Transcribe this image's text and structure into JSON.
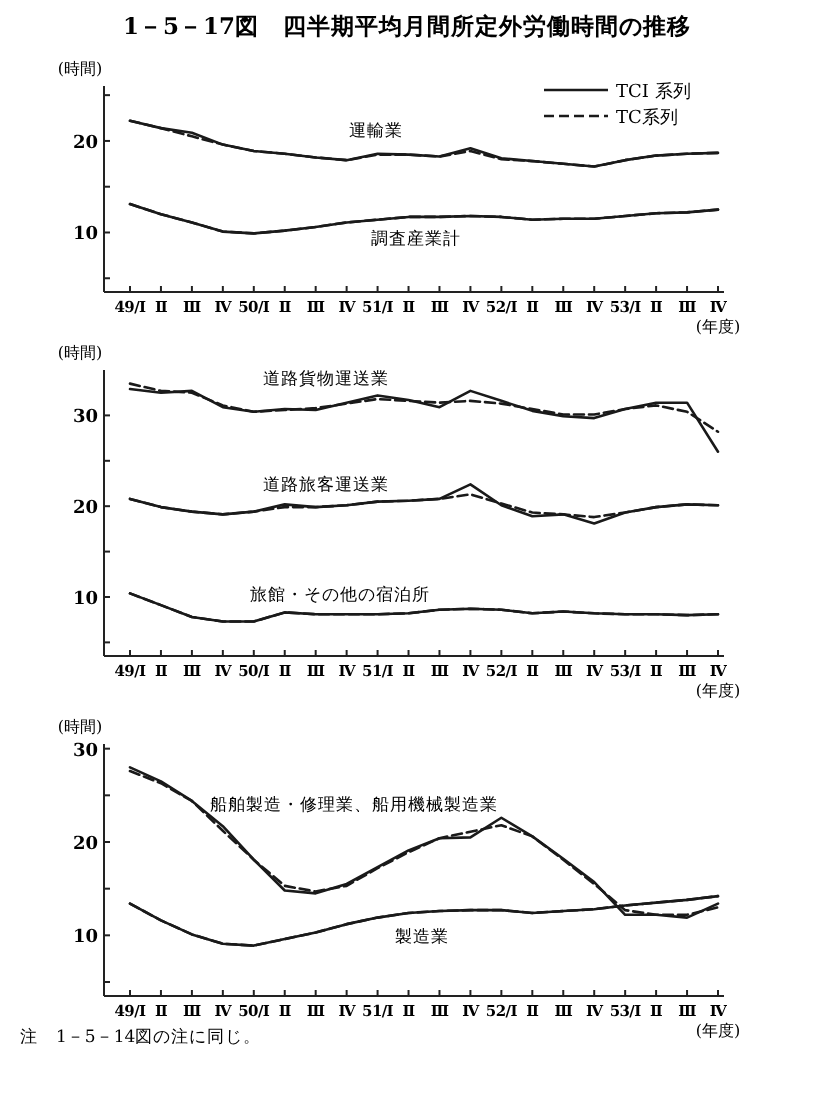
{
  "chart_data": [
    {
      "type": "line",
      "title": "1－5－17図　四半期平均月間所定外労働時間の推移",
      "xlabel": "(年度)",
      "ylabel": "(時間)",
      "categories": [
        "49/Ⅰ",
        "Ⅱ",
        "Ⅲ",
        "Ⅳ",
        "50/Ⅰ",
        "Ⅱ",
        "Ⅲ",
        "Ⅳ",
        "51/Ⅰ",
        "Ⅱ",
        "Ⅲ",
        "Ⅳ",
        "52/Ⅰ",
        "Ⅱ",
        "Ⅲ",
        "Ⅳ",
        "53/Ⅰ",
        "Ⅱ",
        "Ⅲ",
        "Ⅳ"
      ],
      "ylim": [
        3.5,
        26
      ],
      "yticks": [
        {
          "value": 5,
          "label": null
        },
        10,
        {
          "value": 15,
          "label": null
        },
        20,
        {
          "value": 25,
          "label": null
        }
      ],
      "legend": "top right",
      "series": [
        {
          "name": "TCI 系列",
          "color": "#1a1a1a",
          "line_style": "solid",
          "values": [
            22.2,
            21.4,
            20.9,
            19.6,
            18.9,
            18.6,
            18.2,
            17.9,
            18.6,
            18.5,
            18.3,
            19.2,
            18.1,
            17.8,
            17.5,
            17.2,
            17.9,
            18.4,
            18.6,
            18.7
          ]
        },
        {
          "name": "TC系列",
          "color": "#1a1a1a",
          "line_style": "dashed",
          "values": [
            22.2,
            21.4,
            20.5,
            19.6,
            18.9,
            18.6,
            18.2,
            17.9,
            18.5,
            18.5,
            18.3,
            18.9,
            18.0,
            17.8,
            17.5,
            17.2,
            17.9,
            18.4,
            18.6,
            18.7
          ]
        },
        {
          "color": "#1a1a1a",
          "line_style": "solid",
          "values": [
            13.1,
            12.0,
            11.1,
            10.1,
            9.9,
            10.2,
            10.6,
            11.1,
            11.4,
            11.7,
            11.7,
            11.8,
            11.7,
            11.4,
            11.5,
            11.5,
            11.8,
            12.1,
            12.2,
            12.5
          ]
        },
        {
          "color": "#1a1a1a",
          "line_style": "dashed",
          "values": [
            13.1,
            12.0,
            11.1,
            10.1,
            9.9,
            10.2,
            10.6,
            11.1,
            11.4,
            11.7,
            11.7,
            11.8,
            11.7,
            11.4,
            11.5,
            11.5,
            11.8,
            12.1,
            12.2,
            12.5
          ]
        }
      ],
      "annotations": [
        "運輸業",
        "調査産業計"
      ]
    },
    {
      "type": "line",
      "xlabel": "(年度)",
      "ylabel": "(時間)",
      "categories": [
        "49/Ⅰ",
        "Ⅱ",
        "Ⅲ",
        "Ⅳ",
        "50/Ⅰ",
        "Ⅱ",
        "Ⅲ",
        "Ⅳ",
        "51/Ⅰ",
        "Ⅱ",
        "Ⅲ",
        "Ⅳ",
        "52/Ⅰ",
        "Ⅱ",
        "Ⅲ",
        "Ⅳ",
        "53/Ⅰ",
        "Ⅱ",
        "Ⅲ",
        "Ⅳ"
      ],
      "ylim": [
        3.5,
        35
      ],
      "yticks": [
        {
          "value": 5,
          "label": null
        },
        10,
        {
          "value": 15,
          "label": null
        },
        20,
        {
          "value": 25,
          "label": null
        },
        30
      ],
      "series": [
        {
          "color": "#1a1a1a",
          "line_style": "solid",
          "values": [
            32.9,
            32.5,
            32.7,
            30.9,
            30.4,
            30.7,
            30.6,
            31.4,
            32.2,
            31.7,
            30.9,
            32.7,
            31.6,
            30.5,
            29.9,
            29.7,
            30.7,
            31.4,
            31.4,
            26.0
          ]
        },
        {
          "color": "#1a1a1a",
          "line_style": "dashed",
          "values": [
            33.5,
            32.7,
            32.5,
            31.1,
            30.4,
            30.6,
            30.8,
            31.3,
            31.8,
            31.6,
            31.4,
            31.6,
            31.3,
            30.7,
            30.1,
            30.1,
            30.7,
            31.1,
            30.4,
            28.2
          ]
        },
        {
          "color": "#1a1a1a",
          "line_style": "solid",
          "values": [
            20.8,
            19.9,
            19.4,
            19.1,
            19.4,
            20.2,
            19.9,
            20.1,
            20.5,
            20.6,
            20.8,
            22.4,
            20.1,
            18.9,
            19.1,
            18.1,
            19.3,
            19.9,
            20.2,
            20.1
          ]
        },
        {
          "color": "#1a1a1a",
          "line_style": "dashed",
          "values": [
            20.8,
            19.9,
            19.4,
            19.1,
            19.4,
            19.9,
            19.9,
            20.1,
            20.5,
            20.6,
            20.8,
            21.3,
            20.3,
            19.3,
            19.1,
            18.8,
            19.3,
            19.9,
            20.2,
            20.1
          ]
        },
        {
          "color": "#1a1a1a",
          "line_style": "solid",
          "values": [
            10.4,
            9.1,
            7.8,
            7.3,
            7.3,
            8.3,
            8.1,
            8.1,
            8.1,
            8.2,
            8.6,
            8.7,
            8.6,
            8.2,
            8.4,
            8.2,
            8.1,
            8.1,
            8.0,
            8.1
          ]
        },
        {
          "color": "#1a1a1a",
          "line_style": "dashed",
          "values": [
            10.4,
            9.1,
            7.8,
            7.3,
            7.3,
            8.3,
            8.1,
            8.1,
            8.1,
            8.2,
            8.6,
            8.7,
            8.6,
            8.2,
            8.4,
            8.2,
            8.1,
            8.1,
            8.0,
            8.1
          ]
        }
      ],
      "annotations": [
        "道路貨物運送業",
        "道路旅客運送業",
        "旅館・その他の宿泊所"
      ]
    },
    {
      "type": "line",
      "xlabel": "(年度)",
      "ylabel": "(時間)",
      "categories": [
        "49/Ⅰ",
        "Ⅱ",
        "Ⅲ",
        "Ⅳ",
        "50/Ⅰ",
        "Ⅱ",
        "Ⅲ",
        "Ⅳ",
        "51/Ⅰ",
        "Ⅱ",
        "Ⅲ",
        "Ⅳ",
        "52/Ⅰ",
        "Ⅱ",
        "Ⅲ",
        "Ⅳ",
        "53/Ⅰ",
        "Ⅱ",
        "Ⅲ",
        "Ⅳ"
      ],
      "ylim": [
        3.5,
        30.5
      ],
      "yticks": [
        {
          "value": 5,
          "label": null
        },
        10,
        {
          "value": 15,
          "label": null
        },
        20,
        {
          "value": 25,
          "label": null
        },
        30
      ],
      "series": [
        {
          "color": "#1a1a1a",
          "line_style": "solid",
          "values": [
            28.0,
            26.5,
            24.4,
            21.7,
            18.1,
            14.8,
            14.5,
            15.5,
            17.3,
            19.1,
            20.4,
            20.5,
            22.6,
            20.6,
            18.2,
            15.7,
            12.2,
            12.2,
            11.9,
            13.4
          ]
        },
        {
          "color": "#1a1a1a",
          "line_style": "dashed",
          "values": [
            27.6,
            26.3,
            24.4,
            21.2,
            18.1,
            15.3,
            14.7,
            15.3,
            17.2,
            18.9,
            20.4,
            21.1,
            21.8,
            20.6,
            18.1,
            15.5,
            12.7,
            12.2,
            12.2,
            13.0
          ]
        },
        {
          "color": "#1a1a1a",
          "line_style": "solid",
          "values": [
            13.4,
            11.6,
            10.1,
            9.1,
            8.9,
            9.6,
            10.3,
            11.2,
            11.9,
            12.4,
            12.6,
            12.7,
            12.7,
            12.4,
            12.6,
            12.8,
            13.2,
            13.5,
            13.8,
            14.2
          ]
        },
        {
          "color": "#1a1a1a",
          "line_style": "dashed",
          "values": [
            13.4,
            11.6,
            10.1,
            9.1,
            8.9,
            9.6,
            10.3,
            11.2,
            11.9,
            12.4,
            12.6,
            12.7,
            12.7,
            12.4,
            12.6,
            12.8,
            13.2,
            13.5,
            13.8,
            14.2
          ]
        }
      ],
      "annotations": [
        "船舶製造・修理業、船用機械製造業",
        "製造業",
        "注　1－5－14図の注に同じ。"
      ]
    }
  ]
}
